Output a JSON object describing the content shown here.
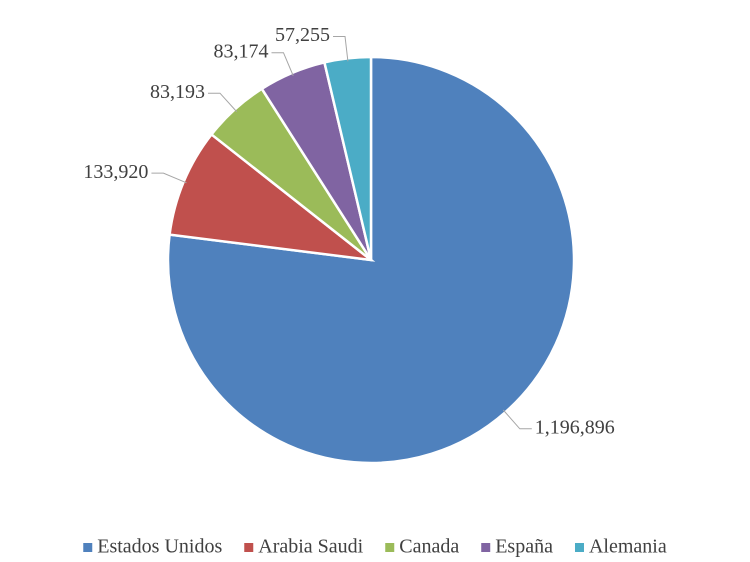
{
  "chart_data": {
    "type": "pie",
    "categories": [
      "Estados Unidos",
      "Arabia Saudi",
      "Canada",
      "España",
      "Alemania"
    ],
    "values": [
      1196896,
      133920,
      83193,
      83174,
      57255
    ],
    "value_labels": [
      "1,196,896",
      "133,920",
      "83,193",
      "83,174",
      "57,255"
    ],
    "colors": [
      "#4f81bd",
      "#c0504d",
      "#9bbb59",
      "#8064a2",
      "#4bacc6"
    ],
    "legend": "bottom"
  }
}
